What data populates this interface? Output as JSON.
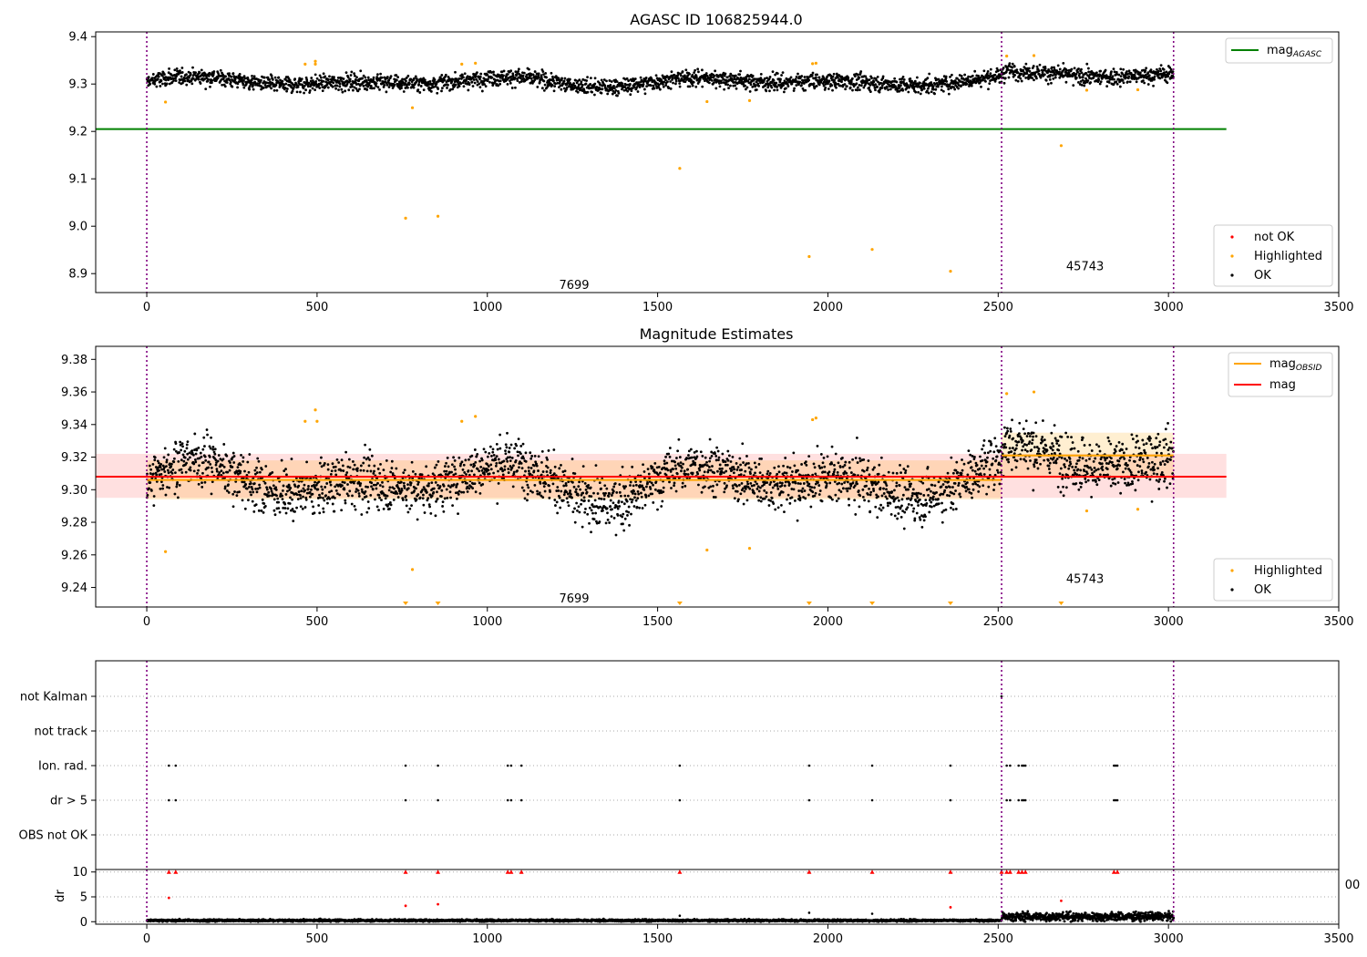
{
  "chart_data": [
    {
      "type": "scatter",
      "title": "AGASC ID 106825944.0",
      "xlim": [
        -150,
        3500
      ],
      "ylim": [
        8.86,
        9.41
      ],
      "x_ticks": [
        "0",
        "500",
        "1000",
        "1500",
        "2000",
        "2500",
        "3000",
        "3500"
      ],
      "y_ticks": [
        "8.9",
        "9.0",
        "9.1",
        "9.2",
        "9.3",
        "9.4"
      ],
      "obs_boundaries": [
        0,
        2510,
        3015
      ],
      "obs_labels": [
        {
          "text": "7699",
          "x": 1255,
          "y": 8.875
        },
        {
          "text": "45743",
          "x": 2755,
          "y": 8.915
        }
      ],
      "mag_agasc": 9.205,
      "mag_agasc_range": [
        -150,
        3170
      ],
      "ok_segments": [
        {
          "x0": 0,
          "x1": 2510,
          "base": 9.305,
          "amp": 0.012,
          "noise": 0.012
        },
        {
          "x0": 2510,
          "x1": 3015,
          "base": 9.32,
          "amp": 0.007,
          "noise": 0.012
        }
      ],
      "highlighted_points": [
        {
          "x": 55,
          "y": 9.262
        },
        {
          "x": 465,
          "y": 9.342
        },
        {
          "x": 495,
          "y": 9.348
        },
        {
          "x": 495,
          "y": 9.342
        },
        {
          "x": 760,
          "y": 9.017
        },
        {
          "x": 780,
          "y": 9.25
        },
        {
          "x": 855,
          "y": 9.021
        },
        {
          "x": 925,
          "y": 9.342
        },
        {
          "x": 965,
          "y": 9.344
        },
        {
          "x": 1565,
          "y": 9.122
        },
        {
          "x": 1645,
          "y": 9.263
        },
        {
          "x": 1770,
          "y": 9.265
        },
        {
          "x": 1945,
          "y": 8.936
        },
        {
          "x": 1955,
          "y": 9.343
        },
        {
          "x": 1965,
          "y": 9.344
        },
        {
          "x": 2130,
          "y": 8.951
        },
        {
          "x": 2360,
          "y": 8.905
        },
        {
          "x": 2525,
          "y": 9.359
        },
        {
          "x": 2605,
          "y": 9.36
        },
        {
          "x": 2685,
          "y": 9.17
        },
        {
          "x": 2760,
          "y": 9.287
        },
        {
          "x": 2910,
          "y": 9.288
        }
      ],
      "legend_lines": [
        {
          "label_main": "mag",
          "label_sub": "AGASC",
          "color": "#008000"
        }
      ],
      "legend_points": [
        {
          "label": "not OK",
          "color": "#ff0000"
        },
        {
          "label": "Highlighted",
          "color": "#ffa500"
        },
        {
          "label": "OK",
          "color": "#000000"
        }
      ]
    },
    {
      "type": "scatter",
      "title": "Magnitude Estimates",
      "xlim": [
        -150,
        3500
      ],
      "ylim": [
        9.228,
        9.388
      ],
      "x_ticks": [
        "0",
        "500",
        "1000",
        "1500",
        "2000",
        "2500",
        "3000",
        "3500"
      ],
      "y_ticks": [
        "9.24",
        "9.26",
        "9.28",
        "9.30",
        "9.32",
        "9.34",
        "9.36",
        "9.38"
      ],
      "obs_boundaries": [
        0,
        2510,
        3015
      ],
      "obs_labels": [
        {
          "text": "7699",
          "x": 1255,
          "y": 9.233
        },
        {
          "text": "45743",
          "x": 2755,
          "y": 9.245
        }
      ],
      "mag": 9.308,
      "mag_band": [
        9.295,
        9.322
      ],
      "mag_range": [
        -150,
        3170
      ],
      "mag_obsid": [
        {
          "x0": 0,
          "x1": 2510,
          "value": 9.306,
          "band": [
            9.294,
            9.318
          ]
        },
        {
          "x0": 2510,
          "x1": 3015,
          "value": 9.321,
          "band": [
            9.307,
            9.335
          ]
        }
      ],
      "highlighted_points": [
        {
          "x": 55,
          "y": 9.262
        },
        {
          "x": 465,
          "y": 9.342
        },
        {
          "x": 495,
          "y": 9.349
        },
        {
          "x": 500,
          "y": 9.342
        },
        {
          "x": 780,
          "y": 9.251
        },
        {
          "x": 925,
          "y": 9.342
        },
        {
          "x": 965,
          "y": 9.345
        },
        {
          "x": 1645,
          "y": 9.263
        },
        {
          "x": 1770,
          "y": 9.264
        },
        {
          "x": 1955,
          "y": 9.343
        },
        {
          "x": 1965,
          "y": 9.344
        },
        {
          "x": 2525,
          "y": 9.359
        },
        {
          "x": 2605,
          "y": 9.36
        },
        {
          "x": 2760,
          "y": 9.287
        },
        {
          "x": 2910,
          "y": 9.288
        }
      ],
      "offscale_low_x": [
        760,
        855,
        1565,
        1945,
        2130,
        2360,
        2685
      ],
      "legend_lines": [
        {
          "label_main": "mag",
          "label_sub": "OBSID",
          "color": "#ffa500"
        },
        {
          "label_main": "mag",
          "label_sub": "",
          "color": "#ff0000"
        }
      ],
      "legend_points": [
        {
          "label": "Highlighted",
          "color": "#ffa500"
        },
        {
          "label": "OK",
          "color": "#000000"
        }
      ]
    },
    {
      "type": "scatter",
      "title": "",
      "xlim": [
        -150,
        3500
      ],
      "categories": [
        "OBS not OK",
        "dr > 5",
        "Ion. rad.",
        "not track",
        "not Kalman"
      ],
      "obs_boundaries": [
        0,
        2510,
        3015
      ],
      "flag_points": {
        "not Kalman": [
          2510
        ],
        "Ion. rad.": [
          65,
          85,
          760,
          855,
          1060,
          1070,
          1100,
          1565,
          1945,
          2130,
          2360,
          2525,
          2535,
          2560,
          2570,
          2575,
          2580,
          2840,
          2845,
          2850
        ],
        "dr > 5": [
          65,
          85,
          760,
          855,
          1060,
          1070,
          1100,
          1565,
          1945,
          2130,
          2360,
          2525,
          2535,
          2560,
          2570,
          2575,
          2580,
          2840,
          2845,
          2850
        ]
      }
    },
    {
      "type": "scatter",
      "ylabel": "dr",
      "xlim": [
        -150,
        3500
      ],
      "ylim": [
        -0.5,
        10.5
      ],
      "x_ticks": [
        "0",
        "500",
        "1000",
        "1500",
        "2000",
        "2500",
        "3000",
        "3500"
      ],
      "y_ticks": [
        "0",
        "5",
        "10"
      ],
      "hidden_tick_label": "00",
      "obs_boundaries": [
        0,
        2510,
        3015
      ],
      "not_ok_points": [
        {
          "x": 65,
          "y": 10
        },
        {
          "x": 65,
          "y": 4.8
        },
        {
          "x": 85,
          "y": 10
        },
        {
          "x": 760,
          "y": 10
        },
        {
          "x": 760,
          "y": 3.2
        },
        {
          "x": 855,
          "y": 10
        },
        {
          "x": 855,
          "y": 3.5
        },
        {
          "x": 1060,
          "y": 10
        },
        {
          "x": 1070,
          "y": 10
        },
        {
          "x": 1100,
          "y": 10
        },
        {
          "x": 1565,
          "y": 10
        },
        {
          "x": 1945,
          "y": 10
        },
        {
          "x": 2130,
          "y": 10
        },
        {
          "x": 2360,
          "y": 10
        },
        {
          "x": 2360,
          "y": 2.9
        },
        {
          "x": 2510,
          "y": 10
        },
        {
          "x": 2525,
          "y": 10
        },
        {
          "x": 2535,
          "y": 10
        },
        {
          "x": 2560,
          "y": 10
        },
        {
          "x": 2570,
          "y": 10
        },
        {
          "x": 2580,
          "y": 10
        },
        {
          "x": 2685,
          "y": 4.2
        },
        {
          "x": 2840,
          "y": 10
        },
        {
          "x": 2850,
          "y": 10
        }
      ],
      "ok_points_sparse": [
        {
          "x": 1565,
          "y": 1.2
        },
        {
          "x": 1945,
          "y": 1.8
        },
        {
          "x": 2130,
          "y": 1.6
        }
      ],
      "ok_segments": [
        {
          "x0": 0,
          "x1": 2510,
          "base": 0.25,
          "noise": 0.15
        },
        {
          "x0": 2510,
          "x1": 3015,
          "base": 1.0,
          "noise": 0.6
        }
      ]
    }
  ]
}
